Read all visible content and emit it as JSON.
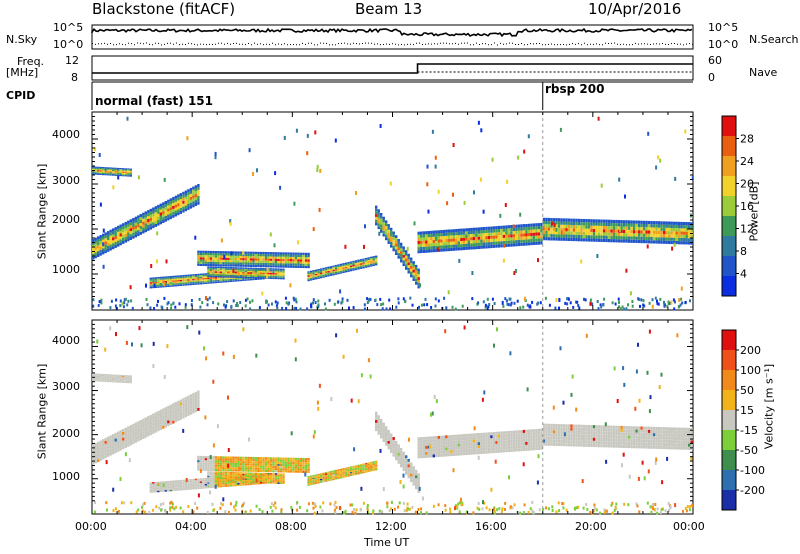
{
  "header": {
    "station": "Blackstone (fitACF)",
    "beam": "Beam 13",
    "date": "10/Apr/2016"
  },
  "top_panels": {
    "nsky_label": "N.Sky",
    "nsearch_label": "N.Search",
    "noise_tick_high": "10^5",
    "noise_tick_low": "10^0",
    "freq_label": "Freq.",
    "freq_unit": "[MHz]",
    "freq_tick_high": "12",
    "freq_tick_low": "8",
    "nave_label": "Nave",
    "nave_tick_high": "60",
    "nave_tick_low": "0",
    "cpid_label": "CPID",
    "cpid_segments": [
      {
        "label": "normal (fast) 151",
        "start_hour": 0
      },
      {
        "label": "rbsp 200",
        "start_hour": 18
      }
    ]
  },
  "chart_data": [
    {
      "type": "heatmap",
      "name": "power",
      "ylabel": "Slant Range [km]",
      "xlabel": "",
      "yticks": [
        "1000",
        "2000",
        "3000",
        "4000"
      ],
      "ylim": [
        200,
        4600
      ],
      "xlim_hours": [
        0,
        24
      ],
      "colorbar": {
        "label": "Power [dB]",
        "ticks": [
          "4",
          "8",
          "12",
          "16",
          "20",
          "24",
          "28"
        ],
        "range": [
          0,
          30
        ],
        "colors": [
          "#0a2ee0",
          "#1f55c8",
          "#2f7a9e",
          "#3f9a5a",
          "#9ccc3a",
          "#f2d12a",
          "#f0a020",
          "#e8600f",
          "#e01010"
        ]
      }
    },
    {
      "type": "heatmap",
      "name": "velocity",
      "ylabel": "Slant Range [km]",
      "xlabel": "Time UT",
      "yticks": [
        "1000",
        "2000",
        "3000",
        "4000"
      ],
      "ylim": [
        200,
        4600
      ],
      "xlim_hours": [
        0,
        24
      ],
      "xticks": [
        "00:00",
        "04:00",
        "08:00",
        "12:00",
        "16:00",
        "20:00",
        "00:00"
      ],
      "colorbar": {
        "label": "Velocity [m s⁻¹]",
        "ticks": [
          "200",
          "100",
          "50",
          "15",
          "-15",
          "-50",
          "-100",
          "-200"
        ],
        "colors": [
          "#1a2ea8",
          "#2e6fb0",
          "#3e8e4e",
          "#7acf3a",
          "#c8c8c0",
          "#f2b21a",
          "#f08a1a",
          "#f0501a",
          "#e01010"
        ]
      }
    }
  ]
}
